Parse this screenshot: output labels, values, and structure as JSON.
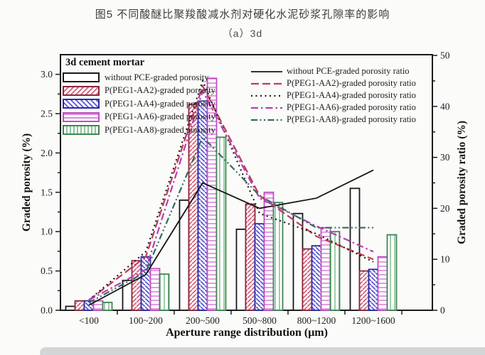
{
  "page": {
    "title": "图5 不同酸醚比聚羧酸减水剂对硬化水泥砂浆孔隙率的影响",
    "subtitle": "（a）3d"
  },
  "chart_data": {
    "type": "bar+line",
    "categories": [
      "<100",
      "100~200",
      "200~500",
      "500~800",
      "800~1200",
      "1200~1600"
    ],
    "xlabel": "Aperture range distribution (μm)",
    "legend_left_title": "3d cement mortar",
    "left_axis": {
      "label": "Graded porosity (%)",
      "ticks": [
        "0.0",
        "0.5",
        "1.0",
        "1.5",
        "2.0",
        "2.5",
        "3.0"
      ],
      "tick_values": [
        0,
        0.5,
        1,
        1.5,
        2,
        2.5,
        3
      ],
      "range": [
        0,
        3.25
      ],
      "minor_step": 0.25
    },
    "right_axis": {
      "label": "Graded porosity ratio (%)",
      "ticks": [
        "0",
        "10",
        "20",
        "30",
        "40",
        "50"
      ],
      "tick_values": [
        0,
        10,
        20,
        30,
        40,
        50
      ],
      "range": [
        0,
        50
      ],
      "minor_step": 5
    },
    "bar_series": [
      {
        "id": "without-pce",
        "label": "without PCE-graded porosity",
        "color": "#1a1a1a",
        "hatch": "none",
        "hatch_color": "#ffffff",
        "values": [
          0.05,
          0.38,
          1.4,
          1.03,
          1.23,
          1.55
        ]
      },
      {
        "id": "peg1-aa2",
        "label": "P(PEG1-AA2)-graded porosity",
        "color": "#8e2639",
        "hatch": "diag-up",
        "hatch_color": "#d4607a",
        "values": [
          0.12,
          0.63,
          2.62,
          1.35,
          0.78,
          0.5
        ]
      },
      {
        "id": "peg1-aa4",
        "label": "P(PEG1-AA4)-graded porosity",
        "color": "#2b2ba6",
        "hatch": "diag-down",
        "hatch_color": "#5757cc",
        "values": [
          0.12,
          0.68,
          2.66,
          1.1,
          0.82,
          0.52
        ]
      },
      {
        "id": "peg1-aa6",
        "label": "P(PEG1-AA6)-graded porosity",
        "color": "#c050c0",
        "hatch": "horizontal",
        "hatch_color": "#dd8add",
        "values": [
          0.12,
          0.53,
          2.95,
          1.5,
          1.05,
          0.68
        ]
      },
      {
        "id": "peg1-aa8",
        "label": "P(PEG1-AA8)-graded porosity",
        "color": "#3f8653",
        "hatch": "vertical",
        "hatch_color": "#8cc49a",
        "values": [
          0.1,
          0.46,
          2.2,
          1.37,
          1.0,
          0.96
        ]
      }
    ],
    "line_series": [
      {
        "id": "without-pce-ratio",
        "label": "without PCE-graded porosity ratio",
        "color": "#151515",
        "style": "solid",
        "values": [
          1.0,
          7.0,
          25.0,
          20.0,
          22.0,
          27.5
        ]
      },
      {
        "id": "peg1-aa2-ratio",
        "label": "P(PEG1-AA2)-graded porosity ratio",
        "color": "#c13b52",
        "style": "dashed",
        "values": [
          2.0,
          10.5,
          44.0,
          22.5,
          14.5,
          10.0
        ]
      },
      {
        "id": "peg1-aa4-ratio",
        "label": "P(PEG1-AA4)-graded porosity ratio",
        "color": "#1d1d1d",
        "style": "dotted",
        "values": [
          2.0,
          11.5,
          45.0,
          19.0,
          15.0,
          9.5
        ]
      },
      {
        "id": "peg1-aa6-ratio",
        "label": "P(PEG1-AA6)-graded porosity ratio",
        "color": "#b73eb7",
        "style": "dash-dot",
        "values": [
          2.0,
          8.0,
          43.0,
          22.0,
          16.5,
          11.5
        ]
      },
      {
        "id": "peg1-aa8-ratio",
        "label": "P(PEG1-AA8)-graded porosity ratio",
        "color": "#356b5f",
        "style": "dash-dot-dot",
        "values": [
          1.5,
          7.5,
          34.0,
          22.5,
          16.2,
          16.2
        ]
      }
    ]
  }
}
